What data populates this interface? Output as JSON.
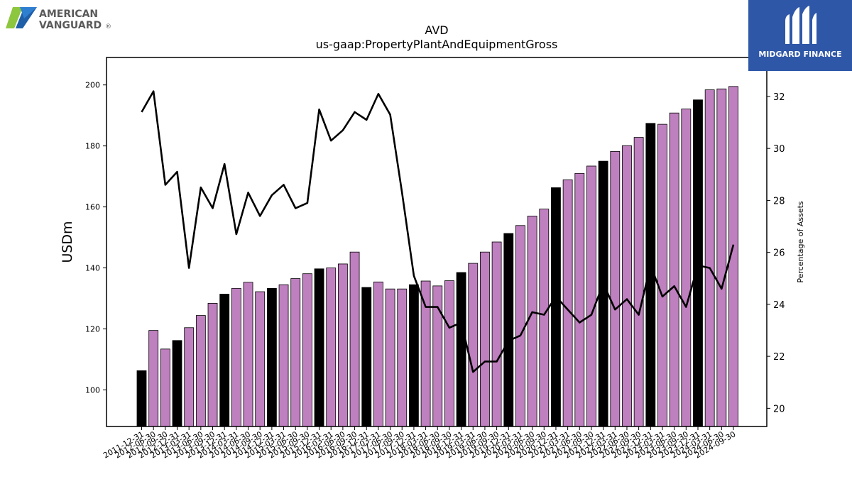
{
  "logos": {
    "left_line1": "AMERICAN",
    "left_line2": "VANGUARD",
    "left_mark": "®",
    "right_text": "MIDGARD FINANCE",
    "right_icon": "midgard-logo-icon",
    "left_icon": "american-vanguard-logo-icon"
  },
  "chart_data": {
    "type": "bar",
    "title": "AVD",
    "subtitle": "us-gaap:PropertyPlantAndEquipmentGross",
    "ylabel": "USDm",
    "y2label": "Percentage of Assets",
    "ylim": [
      88,
      209
    ],
    "y2lim": [
      19.3,
      33.5
    ],
    "yticks": [
      100,
      120,
      140,
      160,
      180,
      200
    ],
    "y2ticks": [
      20,
      22,
      24,
      26,
      28,
      30,
      32
    ],
    "colors": {
      "quarter": "#bf80bf",
      "year_end": "#000000",
      "line": "#000000"
    },
    "categories": [
      "2011-12-31",
      "2012-06-30",
      "2012-09-30",
      "2012-12-31",
      "2013-03-31",
      "2013-06-30",
      "2013-09-30",
      "2013-12-31",
      "2014-03-31",
      "2014-06-30",
      "2014-09-30",
      "2014-12-31",
      "2015-03-31",
      "2015-06-30",
      "2015-09-30",
      "2015-12-31",
      "2016-03-31",
      "2016-06-30",
      "2016-09-30",
      "2016-12-31",
      "2017-03-31",
      "2017-06-30",
      "2017-09-30",
      "2017-12-31",
      "2018-03-31",
      "2018-06-30",
      "2018-09-30",
      "2018-12-31",
      "2019-03-31",
      "2019-06-30",
      "2019-09-30",
      "2019-12-31",
      "2020-03-31",
      "2020-06-30",
      "2020-09-30",
      "2020-12-31",
      "2021-03-31",
      "2021-06-30",
      "2021-09-30",
      "2021-12-31",
      "2022-03-31",
      "2022-06-30",
      "2022-09-30",
      "2022-12-31",
      "2023-03-31",
      "2023-06-30",
      "2023-09-30",
      "2023-12-31",
      "2024-03-31",
      "2024-06-30",
      "2024-09-30"
    ],
    "year_end": [
      true,
      false,
      false,
      true,
      false,
      false,
      false,
      true,
      false,
      false,
      false,
      true,
      false,
      false,
      false,
      true,
      false,
      false,
      false,
      true,
      false,
      false,
      false,
      true,
      false,
      false,
      false,
      true,
      false,
      false,
      false,
      true,
      false,
      false,
      false,
      true,
      false,
      false,
      false,
      true,
      false,
      false,
      false,
      true,
      false,
      false,
      false,
      true,
      false,
      false,
      false
    ],
    "values": [
      106.3,
      119.5,
      113.4,
      116.2,
      120.4,
      124.4,
      128.4,
      131.4,
      133.3,
      135.3,
      132.2,
      133.3,
      134.5,
      136.5,
      138.1,
      139.7,
      140.0,
      141.3,
      145.2,
      133.6,
      135.4,
      133.1,
      133.1,
      134.5,
      135.7,
      134.1,
      135.8,
      138.5,
      141.5,
      145.2,
      148.5,
      151.3,
      153.9,
      157.0,
      159.3,
      166.3,
      168.9,
      171.0,
      173.4,
      175.0,
      178.2,
      180.1,
      182.8,
      187.4,
      187.1,
      190.8,
      192.1,
      195.1,
      198.4,
      198.7,
      199.5
    ],
    "pct_series": {
      "name": "Percentage of Assets",
      "values": [
        31.4,
        32.2,
        28.6,
        29.1,
        25.4,
        28.5,
        27.7,
        29.4,
        26.7,
        28.3,
        27.4,
        28.2,
        28.6,
        27.7,
        27.9,
        31.5,
        30.3,
        30.7,
        31.4,
        31.1,
        32.1,
        31.3,
        28.3,
        25.1,
        23.9,
        23.9,
        23.1,
        23.3,
        21.4,
        21.8,
        21.8,
        22.6,
        22.8,
        23.7,
        23.6,
        24.3,
        23.8,
        23.3,
        23.6,
        24.8,
        23.8,
        24.2,
        23.6,
        25.5,
        24.3,
        24.7,
        23.9,
        25.5,
        25.4,
        24.6,
        26.3
      ]
    }
  }
}
